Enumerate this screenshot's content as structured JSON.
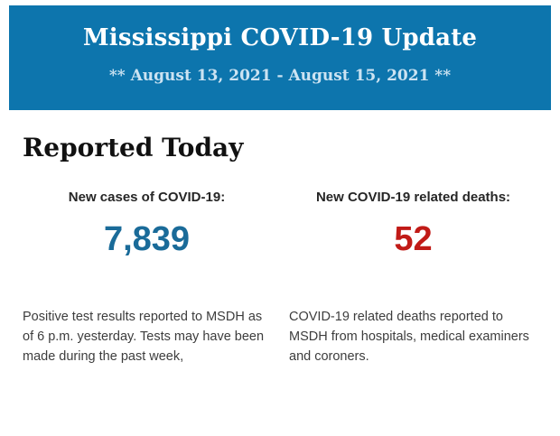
{
  "header": {
    "title": "Mississippi COVID-19 Update",
    "subtitle": "** August 13, 2021 - August 15, 2021 **",
    "background_color": "#0d75ad",
    "title_color": "#ffffff",
    "subtitle_color": "#cce3f2"
  },
  "section": {
    "heading": "Reported Today"
  },
  "stats": {
    "cases": {
      "label": "New cases of COVID-19:",
      "value": "7,839",
      "value_color": "#1a6b99",
      "description": "Positive test results reported to MSDH as of 6 p.m. yesterday. Tests may have been made during the past week,"
    },
    "deaths": {
      "label": "New COVID-19 related deaths:",
      "value": "52",
      "value_color": "#c11b17",
      "description": "COVID-19 related deaths reported to MSDH from hospitals, medical examiners and coroners."
    }
  }
}
